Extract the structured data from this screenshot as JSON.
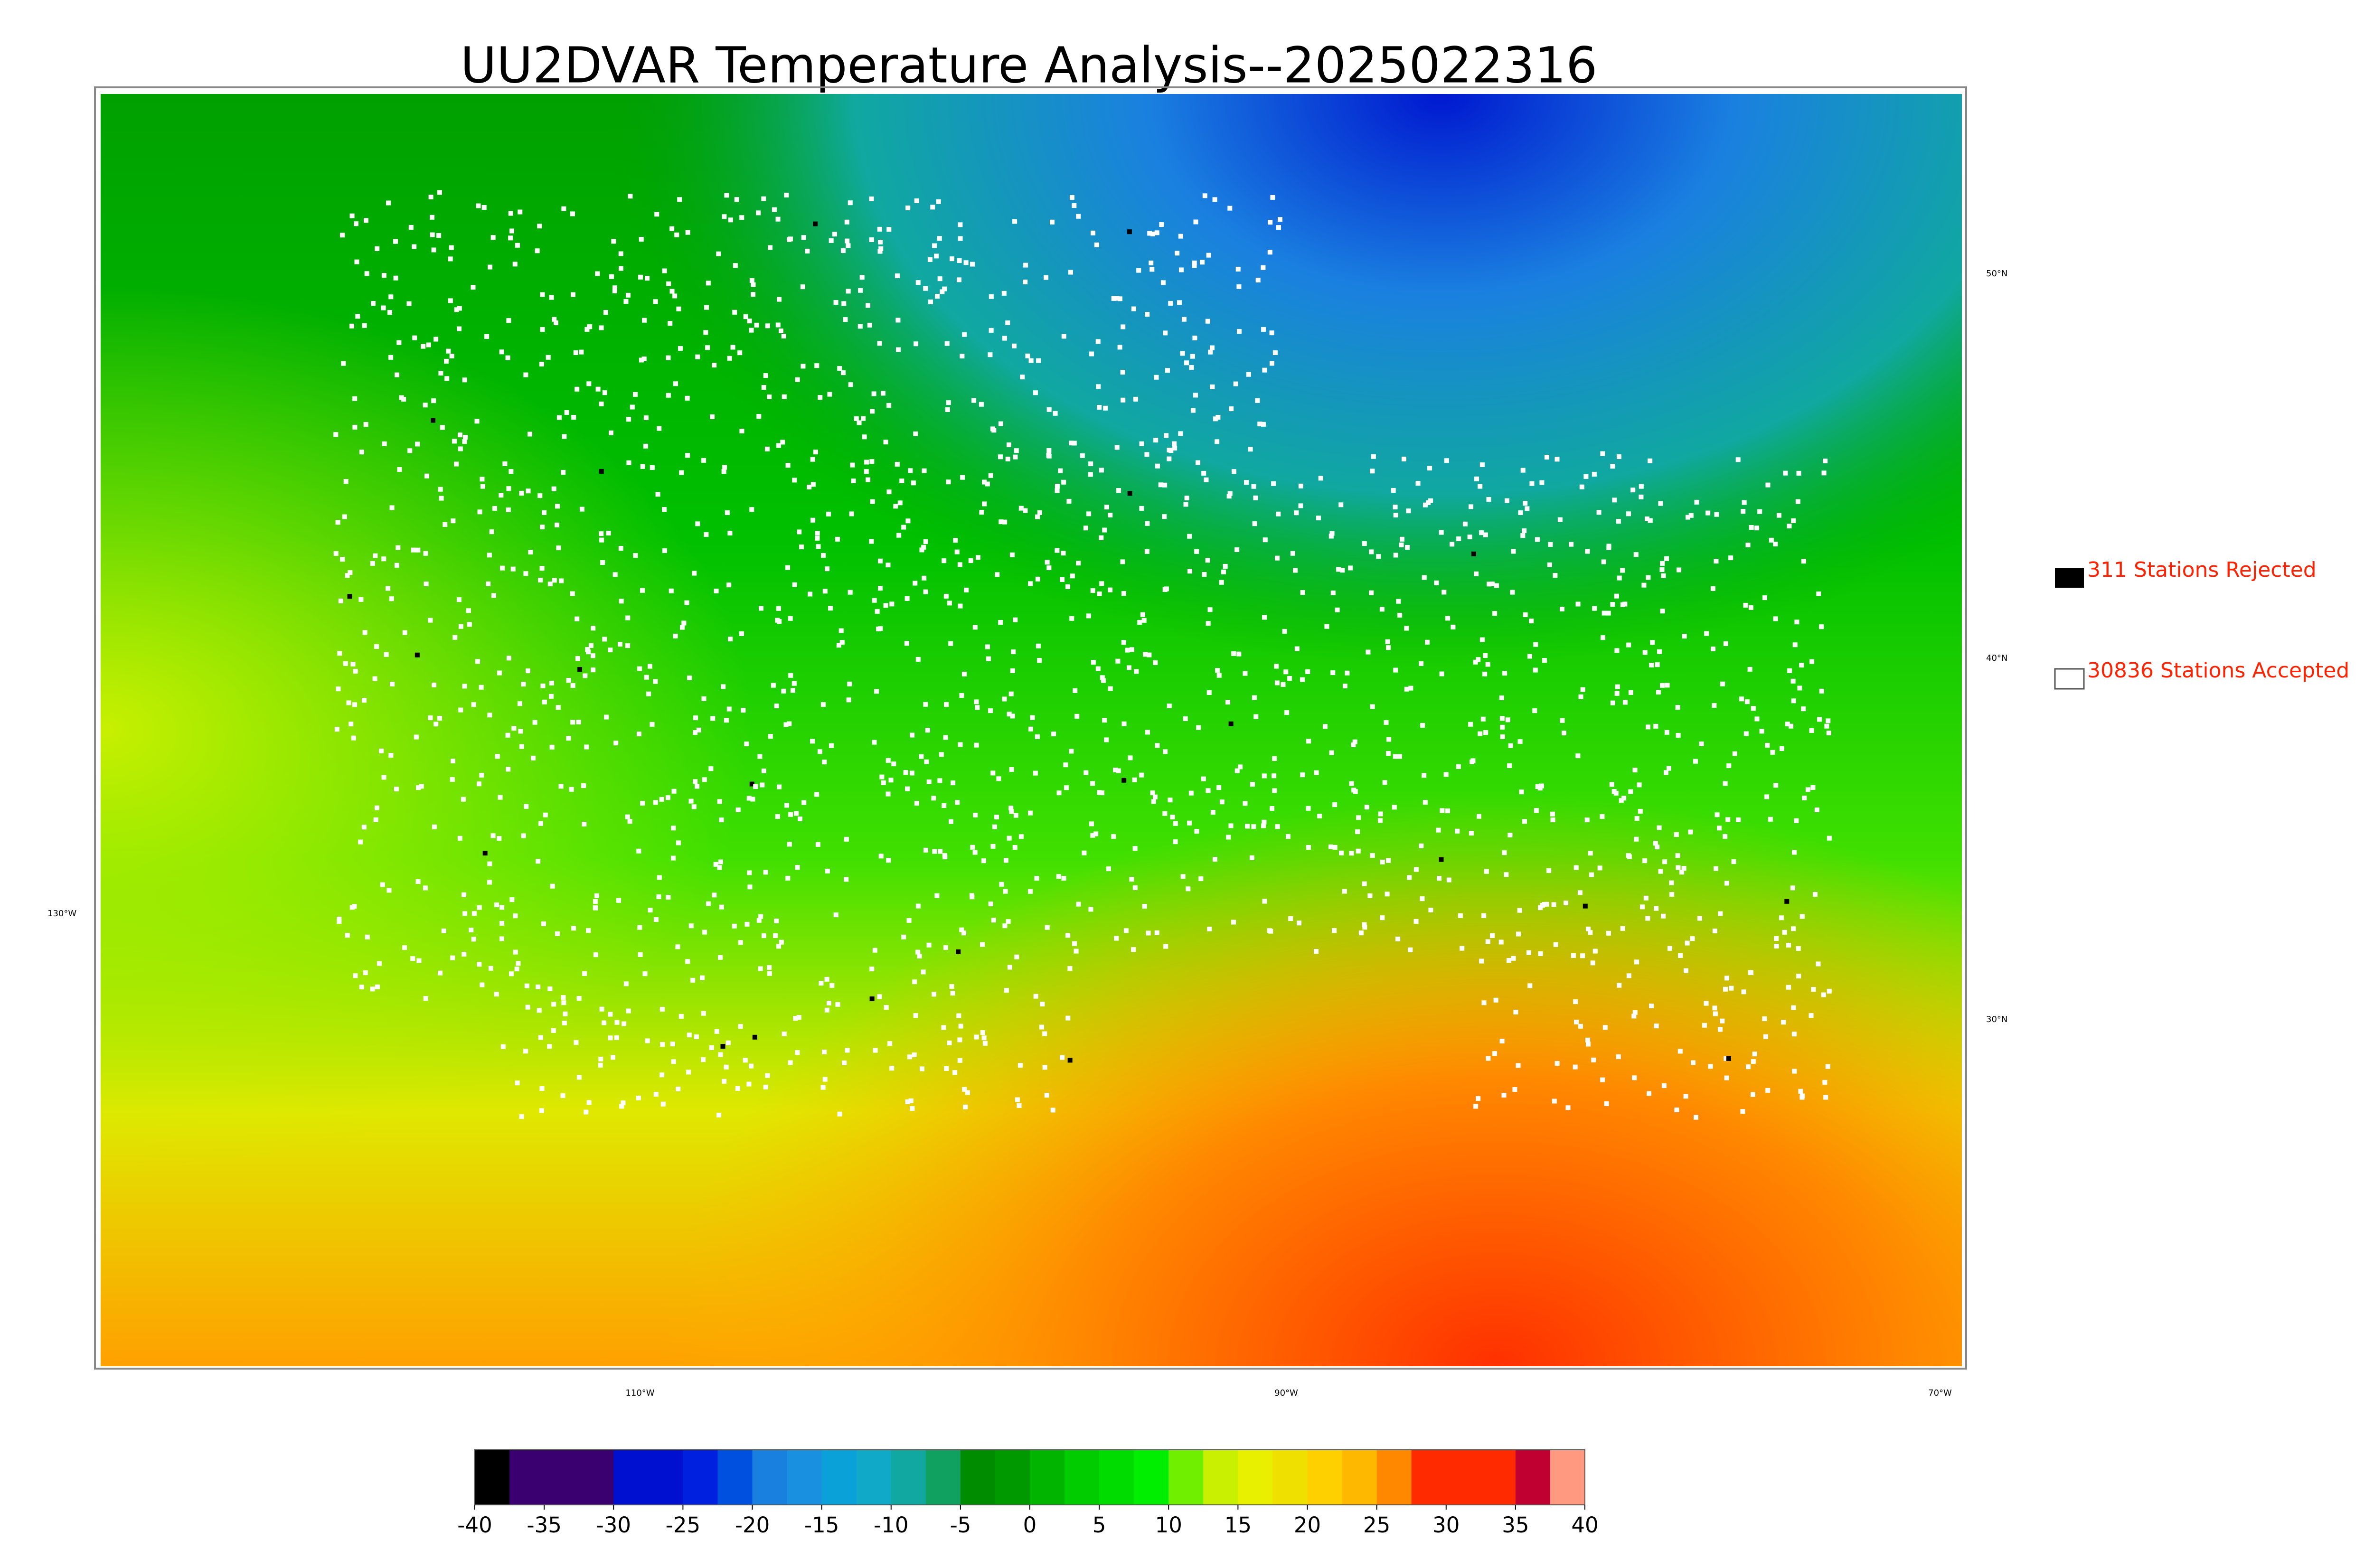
{
  "title": "UU2DVAR Temperature Analysis--2025022316",
  "legend": {
    "rejected": "311 Stations Rejected",
    "accepted": "30836 Stations Accepted",
    "text_color": "#ff2200"
  },
  "graticule": {
    "lat_labels": [
      "50°N",
      "40°N",
      "30°N"
    ],
    "lon_labels": [
      "130°W",
      "110°W",
      "90°W",
      "70°W"
    ]
  },
  "colorbar": {
    "range": [
      -40,
      40
    ],
    "ticks": [
      -40,
      -35,
      -30,
      -25,
      -20,
      -15,
      -10,
      -5,
      0,
      5,
      10,
      15,
      20,
      25,
      30,
      35,
      40
    ],
    "colors": [
      "#000000",
      "#3b0070",
      "#3b0070",
      "#3b0070",
      "#0010d0",
      "#0010d0",
      "#0020e0",
      "#0050e0",
      "#1a80e0",
      "#1a90e0",
      "#0aa0d8",
      "#10aac8",
      "#10a8a0",
      "#10a060",
      "#008c00",
      "#009a00",
      "#00b400",
      "#00cc00",
      "#00dc00",
      "#00ee00",
      "#70f000",
      "#c8f000",
      "#e8f000",
      "#f0e000",
      "#ffd000",
      "#ffb800",
      "#ff8800",
      "#ff2a00",
      "#ff2a00",
      "#ff2a00",
      "#c00030",
      "#ff9a80"
    ]
  }
}
